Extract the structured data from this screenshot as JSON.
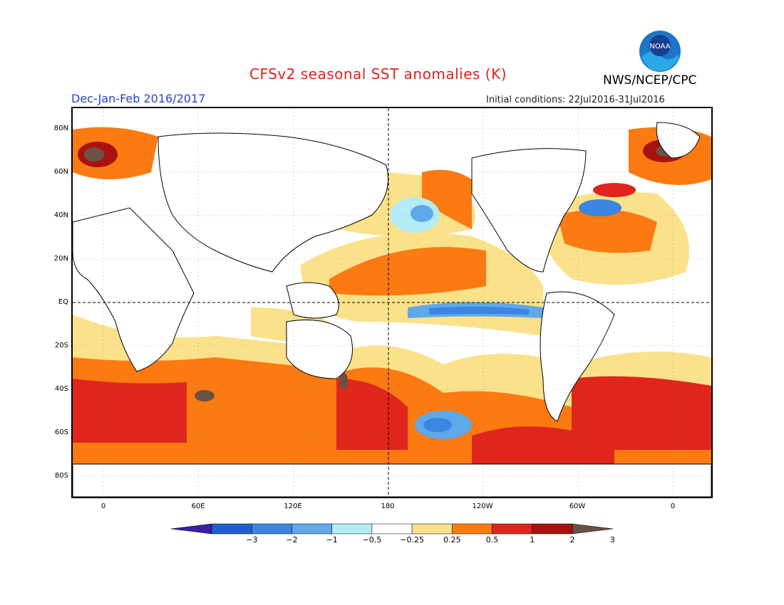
{
  "title": "CFSv2 seasonal SST anomalies (K)",
  "agency": "NWS/NCEP/CPC",
  "logo_text": "NOAA",
  "season_label": "Dec-Jan-Feb 2016/2017",
  "initial_conditions": "Initial conditions: 22Jul2016-31Jul2016",
  "lat_labels": [
    "80N",
    "60N",
    "40N",
    "20N",
    "EQ",
    "20S",
    "40S",
    "60S",
    "80S"
  ],
  "lon_labels": [
    "0",
    "60E",
    "120E",
    "180",
    "120W",
    "60W",
    "0"
  ],
  "colorbar": {
    "labels": [
      "−3",
      "−2",
      "−1",
      "−0.5",
      "−0.25",
      "0.25",
      "0.5",
      "1",
      "2",
      "3"
    ],
    "colors": [
      "#3a1fa6",
      "#1f5fd0",
      "#3a86e0",
      "#5fa8ea",
      "#b3ecf5",
      "#ffffff",
      "#fbe18a",
      "#fb7a12",
      "#e0251c",
      "#a8120e",
      "#6b5044"
    ]
  }
}
